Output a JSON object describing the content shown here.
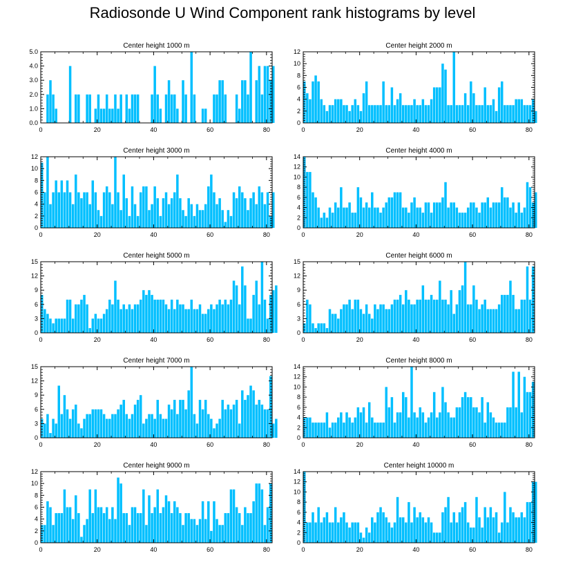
{
  "title": "Radiosonde U Wind Component rank histograms by level",
  "colors": {
    "bar": "#00bfff",
    "bar_edge": "#ffffff",
    "axis": "#000000"
  },
  "chart_data": [
    {
      "type": "bar",
      "title": "Center height 1000 m",
      "ylim": [
        0,
        5
      ],
      "yticks": [
        0,
        1,
        2,
        3,
        4,
        5
      ],
      "ytick_labels": [
        "0.0",
        "1.0",
        "2.0",
        "3.0",
        "4.0",
        "5.0"
      ],
      "xlim": [
        0,
        82
      ],
      "xticks": [
        0,
        20,
        40,
        60,
        80
      ],
      "values": [
        0,
        0,
        2,
        3,
        2,
        1,
        0,
        0,
        0,
        0,
        4,
        0,
        2,
        2,
        0,
        0,
        2,
        2,
        0,
        1,
        2,
        1,
        1,
        2,
        1,
        1,
        2,
        1,
        2,
        0,
        2,
        1,
        2,
        2,
        2,
        0,
        0,
        0,
        0,
        2,
        4,
        2,
        1,
        0,
        2,
        3,
        2,
        2,
        1,
        0,
        3,
        2,
        0,
        5,
        2,
        0,
        0,
        1,
        1,
        0,
        0,
        2,
        2,
        3,
        3,
        2,
        0,
        0,
        0,
        2,
        1,
        3,
        3,
        2,
        5,
        0,
        3,
        4,
        2,
        4,
        4,
        3,
        4
      ]
    },
    {
      "type": "bar",
      "title": "Center height 2000 m",
      "ylim": [
        0,
        12
      ],
      "yticks": [
        0,
        2,
        4,
        6,
        8,
        10,
        12
      ],
      "ytick_labels": [
        "0",
        "2",
        "4",
        "6",
        "8",
        "10",
        "12"
      ],
      "xlim": [
        0,
        82
      ],
      "xticks": [
        0,
        20,
        40,
        60,
        80
      ],
      "values": [
        7,
        5,
        4,
        7,
        8,
        7,
        4,
        3,
        2,
        3,
        3,
        4,
        4,
        4,
        3,
        3,
        2,
        3,
        4,
        3,
        2,
        5,
        7,
        3,
        3,
        3,
        3,
        3,
        7,
        3,
        3,
        6,
        3,
        4,
        5,
        3,
        3,
        3,
        3,
        4,
        3,
        3,
        4,
        3,
        3,
        4,
        6,
        6,
        6,
        10,
        9,
        3,
        3,
        12,
        3,
        3,
        3,
        5,
        3,
        7,
        5,
        3,
        3,
        3,
        6,
        3,
        3,
        4,
        2,
        6,
        7,
        3,
        3,
        3,
        3,
        4,
        4,
        4,
        3,
        3,
        3,
        4,
        2
      ]
    },
    {
      "type": "bar",
      "title": "Center height 3000 m",
      "ylim": [
        0,
        12
      ],
      "yticks": [
        0,
        2,
        4,
        6,
        8,
        10,
        12
      ],
      "ytick_labels": [
        "0",
        "2",
        "4",
        "6",
        "8",
        "10",
        "12"
      ],
      "xlim": [
        0,
        82
      ],
      "xticks": [
        0,
        20,
        40,
        60,
        80
      ],
      "values": [
        11,
        6,
        12,
        4,
        6,
        8,
        6,
        8,
        6,
        8,
        6,
        4,
        9,
        6,
        5,
        6,
        6,
        4,
        8,
        6,
        3,
        2,
        6,
        7,
        6,
        4,
        12,
        6,
        3,
        9,
        5,
        2,
        7,
        4,
        2,
        6,
        7,
        7,
        3,
        4,
        7,
        5,
        2,
        5,
        6,
        4,
        5,
        6,
        9,
        5,
        3,
        2,
        5,
        4,
        2,
        4,
        3,
        3,
        4,
        7,
        9,
        6,
        4,
        5,
        3,
        1,
        3,
        2,
        6,
        5,
        7,
        6,
        5,
        3,
        5,
        6,
        4,
        7,
        6,
        4,
        6,
        2,
        6
      ]
    },
    {
      "type": "bar",
      "title": "Center height 4000 m",
      "ylim": [
        0,
        14
      ],
      "yticks": [
        0,
        2,
        4,
        6,
        8,
        10,
        12,
        14
      ],
      "ytick_labels": [
        "0",
        "2",
        "4",
        "6",
        "8",
        "10",
        "12",
        "14"
      ],
      "xlim": [
        0,
        82
      ],
      "xticks": [
        0,
        20,
        40,
        60,
        80
      ],
      "values": [
        14,
        11,
        11,
        7,
        6,
        4,
        2,
        3,
        2,
        4,
        3,
        5,
        4,
        8,
        4,
        4,
        5,
        3,
        3,
        8,
        6,
        4,
        5,
        4,
        7,
        4,
        4,
        3,
        4,
        5,
        6,
        6,
        7,
        7,
        7,
        4,
        4,
        3,
        5,
        6,
        4,
        4,
        3,
        5,
        5,
        3,
        5,
        5,
        5,
        6,
        9,
        4,
        5,
        5,
        4,
        3,
        3,
        3,
        4,
        5,
        5,
        4,
        3,
        5,
        5,
        6,
        4,
        5,
        5,
        5,
        8,
        6,
        6,
        4,
        5,
        3,
        5,
        3,
        4,
        9,
        8,
        5,
        7
      ]
    },
    {
      "type": "bar",
      "title": "Center height 5000 m",
      "ylim": [
        0,
        15
      ],
      "yticks": [
        0,
        3,
        6,
        9,
        12,
        15
      ],
      "ytick_labels": [
        "0",
        "3",
        "6",
        "9",
        "12",
        "15"
      ],
      "xlim": [
        0,
        82
      ],
      "xticks": [
        0,
        20,
        40,
        60,
        80
      ],
      "values": [
        8,
        5,
        4,
        3,
        2,
        3,
        3,
        3,
        3,
        7,
        7,
        3,
        6,
        6,
        7,
        8,
        6,
        1,
        3,
        4,
        3,
        3,
        4,
        5,
        7,
        6,
        11,
        7,
        5,
        6,
        5,
        6,
        5,
        6,
        6,
        7,
        9,
        8,
        9,
        8,
        7,
        7,
        7,
        7,
        6,
        5,
        7,
        5,
        7,
        6,
        6,
        5,
        5,
        7,
        5,
        5,
        6,
        4,
        4,
        5,
        6,
        5,
        6,
        7,
        6,
        7,
        6,
        7,
        11,
        10,
        6,
        14,
        10,
        3,
        3,
        8,
        11,
        6,
        15,
        7,
        3,
        8,
        9,
        10
      ]
    },
    {
      "type": "bar",
      "title": "Center height 6000 m",
      "ylim": [
        0,
        15
      ],
      "yticks": [
        0,
        3,
        6,
        9,
        12,
        15
      ],
      "ytick_labels": [
        "0",
        "3",
        "6",
        "9",
        "12",
        "15"
      ],
      "xlim": [
        0,
        82
      ],
      "xticks": [
        0,
        20,
        40,
        60,
        80
      ],
      "values": [
        2,
        7,
        6,
        2,
        1,
        2,
        2,
        2,
        1,
        5,
        4,
        4,
        3,
        5,
        6,
        6,
        7,
        5,
        7,
        7,
        5,
        4,
        6,
        4,
        3,
        6,
        5,
        6,
        6,
        5,
        5,
        6,
        7,
        7,
        8,
        6,
        9,
        7,
        6,
        6,
        7,
        7,
        10,
        7,
        7,
        8,
        7,
        7,
        11,
        7,
        7,
        6,
        9,
        4,
        6,
        9,
        10,
        15,
        6,
        6,
        10,
        7,
        5,
        6,
        7,
        5,
        5,
        5,
        5,
        6,
        8,
        8,
        8,
        11,
        8,
        5,
        5,
        7,
        7,
        14,
        7,
        14
      ]
    },
    {
      "type": "bar",
      "title": "Center height 7000 m",
      "ylim": [
        0,
        15
      ],
      "yticks": [
        0,
        3,
        6,
        9,
        12,
        15
      ],
      "ytick_labels": [
        "0",
        "3",
        "6",
        "9",
        "12",
        "15"
      ],
      "xlim": [
        0,
        82
      ],
      "xticks": [
        0,
        20,
        40,
        60,
        80
      ],
      "values": [
        4,
        3,
        5,
        1,
        4,
        3,
        11,
        5,
        9,
        6,
        4,
        6,
        7,
        3,
        2,
        4,
        5,
        5,
        6,
        6,
        6,
        6,
        5,
        4,
        4,
        5,
        5,
        6,
        7,
        8,
        5,
        4,
        5,
        7,
        8,
        9,
        3,
        4,
        5,
        5,
        4,
        8,
        5,
        4,
        4,
        7,
        6,
        8,
        5,
        8,
        8,
        6,
        10,
        15,
        5,
        3,
        8,
        6,
        8,
        5,
        4,
        2,
        3,
        4,
        8,
        6,
        7,
        6,
        7,
        8,
        3,
        10,
        8,
        9,
        11,
        10,
        7,
        8,
        7,
        6,
        6,
        13,
        3,
        4
      ]
    },
    {
      "type": "bar",
      "title": "Center height 8000 m",
      "ylim": [
        0,
        14
      ],
      "yticks": [
        0,
        2,
        4,
        6,
        8,
        10,
        12,
        14
      ],
      "ytick_labels": [
        "0",
        "2",
        "4",
        "6",
        "8",
        "10",
        "12",
        "14"
      ],
      "xlim": [
        0,
        82
      ],
      "xticks": [
        0,
        20,
        40,
        60,
        80
      ],
      "values": [
        4,
        4,
        4,
        3,
        3,
        3,
        3,
        3,
        5,
        2,
        3,
        3,
        4,
        5,
        3,
        5,
        4,
        3,
        4,
        6,
        5,
        6,
        3,
        7,
        4,
        3,
        3,
        3,
        3,
        10,
        6,
        8,
        3,
        5,
        5,
        9,
        8,
        4,
        14,
        5,
        4,
        6,
        5,
        3,
        4,
        5,
        9,
        4,
        5,
        10,
        7,
        5,
        4,
        4,
        6,
        6,
        8,
        9,
        8,
        8,
        6,
        6,
        5,
        8,
        3,
        7,
        5,
        4,
        3,
        3,
        3,
        3,
        6,
        6,
        13,
        6,
        13,
        5,
        12,
        9,
        9,
        11
      ]
    },
    {
      "type": "bar",
      "title": "Center height 9000 m",
      "ylim": [
        0,
        12
      ],
      "yticks": [
        0,
        2,
        4,
        6,
        8,
        10,
        12
      ],
      "ytick_labels": [
        "0",
        "2",
        "4",
        "6",
        "8",
        "10",
        "12"
      ],
      "xlim": [
        0,
        82
      ],
      "xticks": [
        0,
        20,
        40,
        60,
        80
      ],
      "values": [
        3,
        3,
        7,
        6,
        3,
        5,
        5,
        5,
        9,
        6,
        6,
        4,
        8,
        5,
        1,
        3,
        4,
        9,
        5,
        9,
        6,
        6,
        5,
        6,
        4,
        6,
        4,
        11,
        10,
        5,
        5,
        3,
        6,
        6,
        5,
        5,
        9,
        3,
        8,
        5,
        6,
        9,
        5,
        6,
        8,
        7,
        5,
        7,
        6,
        5,
        3,
        5,
        5,
        4,
        4,
        3,
        4,
        7,
        4,
        7,
        2,
        7,
        4,
        3,
        3,
        5,
        5,
        9,
        9,
        6,
        5,
        3,
        6,
        5,
        5,
        7,
        10,
        10,
        9,
        3,
        6,
        10
      ]
    },
    {
      "type": "bar",
      "title": "Center height 10000 m",
      "ylim": [
        0,
        14
      ],
      "yticks": [
        0,
        2,
        4,
        6,
        8,
        10,
        12,
        14
      ],
      "ytick_labels": [
        "0",
        "2",
        "4",
        "6",
        "8",
        "10",
        "12",
        "14"
      ],
      "xlim": [
        0,
        82
      ],
      "xticks": [
        0,
        20,
        40,
        60,
        80
      ],
      "values": [
        14,
        4,
        4,
        6,
        4,
        7,
        4,
        5,
        6,
        4,
        4,
        7,
        4,
        5,
        6,
        4,
        3,
        4,
        4,
        4,
        2,
        1,
        3,
        2,
        5,
        4,
        6,
        7,
        6,
        5,
        4,
        3,
        4,
        9,
        5,
        5,
        4,
        8,
        4,
        7,
        5,
        6,
        5,
        4,
        5,
        4,
        2,
        2,
        2,
        6,
        7,
        9,
        4,
        6,
        4,
        6,
        7,
        8,
        4,
        3,
        3,
        9,
        5,
        3,
        7,
        5,
        7,
        5,
        6,
        2,
        4,
        10,
        4,
        7,
        6,
        5,
        5,
        6,
        5,
        8,
        8,
        12,
        12
      ]
    }
  ]
}
